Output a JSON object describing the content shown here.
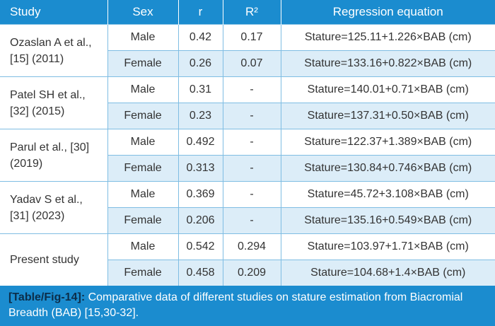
{
  "headers": {
    "study": "Study",
    "sex": "Sex",
    "r": "r",
    "r2": "R²",
    "eq": "Regression equation"
  },
  "rows": [
    {
      "study": "Ozaslan A et al., [15] (2011)",
      "male": {
        "sex": "Male",
        "r": "0.42",
        "r2": "0.17",
        "eq": "Stature=125.11+1.226×BAB (cm)"
      },
      "female": {
        "sex": "Female",
        "r": "0.26",
        "r2": "0.07",
        "eq": "Stature=133.16+0.822×BAB (cm)"
      }
    },
    {
      "study": "Patel SH et al., [32] (2015)",
      "male": {
        "sex": "Male",
        "r": "0.31",
        "r2": "-",
        "eq": "Stature=140.01+0.71×BAB (cm)"
      },
      "female": {
        "sex": "Female",
        "r": "0.23",
        "r2": "-",
        "eq": "Stature=137.31+0.50×BAB (cm)"
      }
    },
    {
      "study": "Parul et al., [30] (2019)",
      "male": {
        "sex": "Male",
        "r": "0.492",
        "r2": "-",
        "eq": "Stature=122.37+1.389×BAB (cm)"
      },
      "female": {
        "sex": "Female",
        "r": "0.313",
        "r2": "-",
        "eq": "Stature=130.84+0.746×BAB (cm)"
      }
    },
    {
      "study": "Yadav S et al., [31] (2023)",
      "male": {
        "sex": "Male",
        "r": "0.369",
        "r2": "-",
        "eq": "Stature=45.72+3.108×BAB (cm)"
      },
      "female": {
        "sex": "Female",
        "r": "0.206",
        "r2": "-",
        "eq": "Stature=135.16+0.549×BAB (cm)"
      }
    },
    {
      "study": "Present study",
      "male": {
        "sex": "Male",
        "r": "0.542",
        "r2": "0.294",
        "eq": "Stature=103.97+1.71×BAB (cm)"
      },
      "female": {
        "sex": "Female",
        "r": "0.458",
        "r2": "0.209",
        "eq": "Stature=104.68+1.4×BAB (cm)"
      }
    }
  ],
  "caption": {
    "label": "[Table/Fig-14]:",
    "text": " Comparative data of different studies on stature estimation from Biacromial Breadth (BAB) [15,30-32]."
  }
}
